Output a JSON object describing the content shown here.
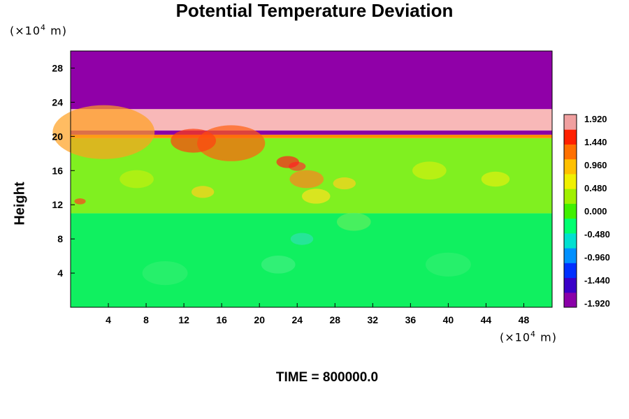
{
  "chart_data": {
    "type": "heatmap",
    "title": "Potential Temperature Deviation",
    "ylabel": "Height",
    "y_unit": {
      "prefix": "(×10",
      "exp": "4",
      "suffix": " m)"
    },
    "x_unit": {
      "prefix": "(×10",
      "exp": "4",
      "suffix": " m)"
    },
    "x_ticks": [
      "4",
      "8",
      "12",
      "16",
      "20",
      "24",
      "28",
      "32",
      "36",
      "40",
      "44",
      "48"
    ],
    "x_tick_values": [
      4,
      8,
      12,
      16,
      20,
      24,
      28,
      32,
      36,
      40,
      44,
      48
    ],
    "y_ticks": [
      "4",
      "8",
      "12",
      "16",
      "20",
      "24",
      "28"
    ],
    "y_tick_values": [
      4,
      8,
      12,
      16,
      20,
      24,
      28
    ],
    "xlim": [
      0,
      51
    ],
    "ylim": [
      0,
      30
    ],
    "colorbar": {
      "min": -1.92,
      "max": 1.92,
      "labels": [
        "1.920",
        "1.440",
        "0.960",
        "0.480",
        "0.000",
        "-0.480",
        "-0.960",
        "-1.440",
        "-1.920"
      ],
      "colors": [
        "#8a00a8",
        "#3a00c8",
        "#0030ff",
        "#0090ff",
        "#00e0d0",
        "#00ff70",
        "#40f000",
        "#a0f000",
        "#f0f000",
        "#ffc000",
        "#ff7000",
        "#ff2000",
        "#f0a0a0"
      ]
    },
    "layers": [
      {
        "y_from": 0,
        "y_to": 11,
        "value": -0.1,
        "color": "#10f060"
      },
      {
        "y_from": 11,
        "y_to": 19.8,
        "value": 0.2,
        "color": "#80f020"
      },
      {
        "y_from": 19.8,
        "y_to": 20.2,
        "value": 0.9,
        "color": "#ff9000"
      },
      {
        "y_from": 20.2,
        "y_to": 20.7,
        "value": -1.9,
        "color": "#8a00a8"
      },
      {
        "y_from": 20.7,
        "y_to": 23.2,
        "value": 1.92,
        "color": "#f8b8b8"
      },
      {
        "y_from": 23.2,
        "y_to": 30,
        "value": -1.92,
        "color": "#9000a8"
      }
    ]
  },
  "time_label": "TIME = 800000.0"
}
